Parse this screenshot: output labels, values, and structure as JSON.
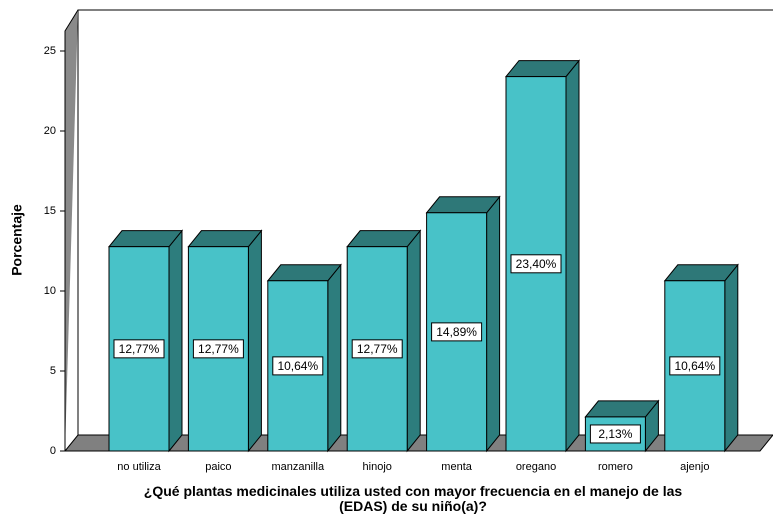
{
  "chart_data": {
    "type": "bar",
    "x_label": "¿Qué plantas medicinales utiliza usted con mayor frecuencia en el manejo de las (EDAS) de su niño(a)?",
    "y_label": "Porcentaje",
    "categories": [
      "no utiliza",
      "paico",
      "manzanilla",
      "hinojo",
      "menta",
      "oregano",
      "romero",
      "ajenjo"
    ],
    "values": [
      12.77,
      12.77,
      10.64,
      12.77,
      14.89,
      23.4,
      2.13,
      10.64
    ],
    "value_labels": [
      "12,77%",
      "12,77%",
      "10,64%",
      "12,77%",
      "14,89%",
      "23,40%",
      "2,13%",
      "10,64%"
    ],
    "color": "#48c2c8",
    "ylim": [
      0,
      26.25
    ],
    "yticks": [
      0,
      5,
      10,
      15,
      20,
      25
    ],
    "grid": false
  }
}
